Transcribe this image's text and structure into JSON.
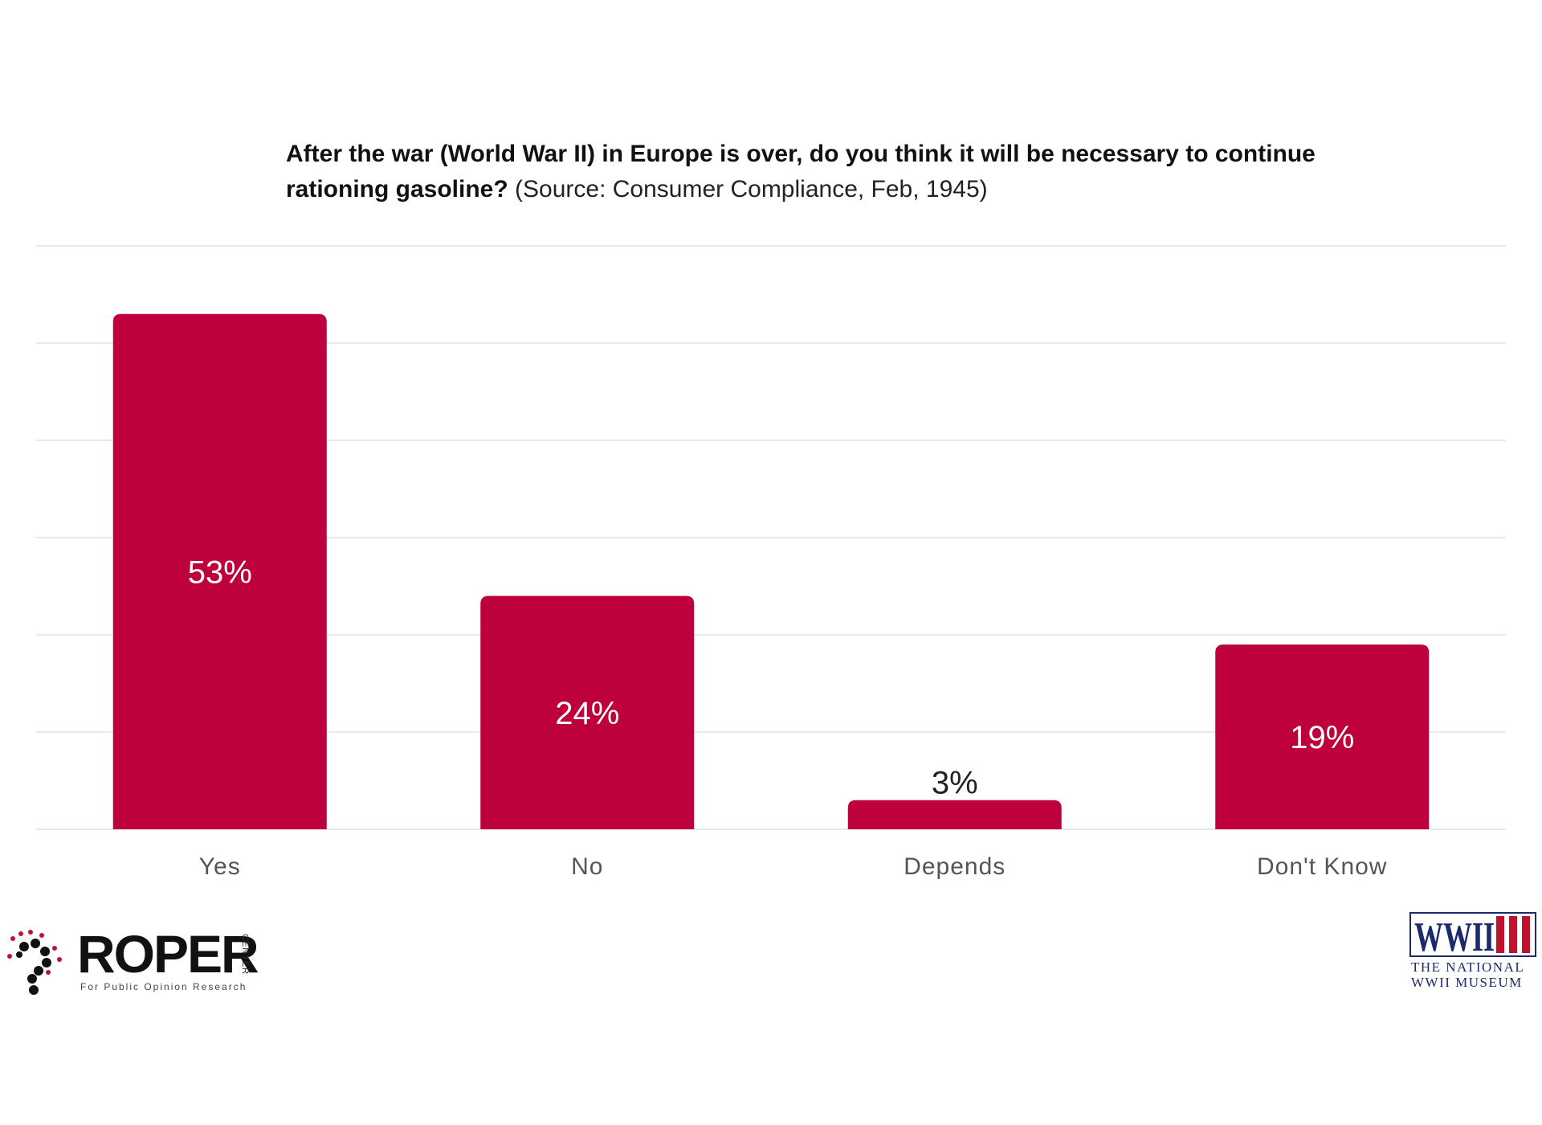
{
  "chart_data": {
    "type": "bar",
    "title": "After the war (World War II) in Europe is over, do you think it will be necessary to continue rationing gasoline?",
    "subtitle": "(Source: Consumer Compliance, Feb, 1945)",
    "categories": [
      "Yes",
      "No",
      "Depends",
      "Don't Know"
    ],
    "values": [
      53,
      24,
      3,
      19
    ],
    "value_labels": [
      "53%",
      "24%",
      "3%",
      "19%"
    ],
    "ylim": [
      0,
      60
    ],
    "grid": true,
    "xlabel": "",
    "ylabel": "",
    "bar_color": "#be003c"
  },
  "logos": {
    "roper": {
      "name": "ROPER",
      "side_text": "CENTER",
      "tagline": "For Public Opinion Research"
    },
    "museum": {
      "mark": "WWII",
      "line1": "THE NATIONAL",
      "line2": "WWII MUSEUM"
    }
  }
}
